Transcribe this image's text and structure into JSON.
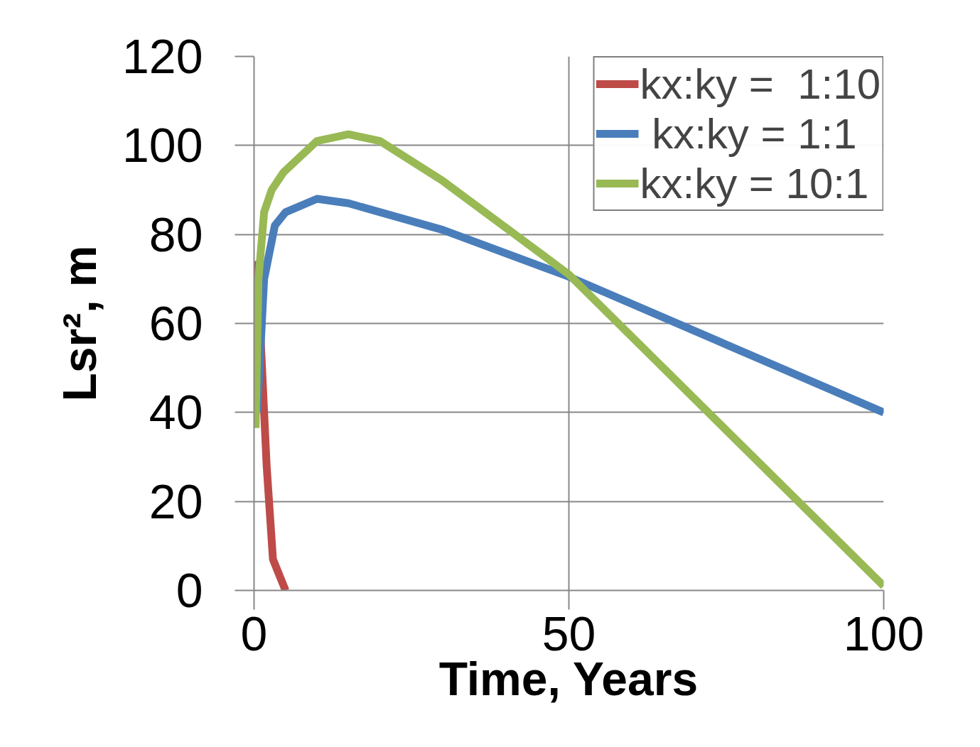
{
  "chart_data": {
    "type": "line",
    "xlabel": "Time, Years",
    "ylabel": "Lsr², m",
    "xlim": [
      0,
      100
    ],
    "ylim": [
      0,
      120
    ],
    "xticks": [
      0,
      50,
      100
    ],
    "yticks": [
      0,
      20,
      40,
      60,
      80,
      100,
      120
    ],
    "grid": true,
    "legend": "top right",
    "marker": "none",
    "line_style": "solid",
    "series": [
      {
        "name": "kx:ky =  1:10",
        "color": "#be4b48",
        "x": [
          0,
          1,
          2,
          3,
          5
        ],
        "values": [
          74,
          58,
          28,
          7,
          0
        ]
      },
      {
        "name": " kx:ky = 1:1",
        "color": "#4a7ebb",
        "x": [
          0.5,
          1.6,
          3.3,
          5,
          10,
          15,
          30,
          50,
          100
        ],
        "values": [
          40,
          70,
          82,
          85,
          88,
          87,
          81,
          70.5,
          40
        ]
      },
      {
        "name": "kx:ky = 10:1",
        "color": "#98b954",
        "x": [
          0.25,
          0.7,
          1.6,
          2.8,
          4.7,
          10,
          15,
          20,
          30,
          50,
          100
        ],
        "values": [
          36.5,
          70,
          85,
          90,
          94,
          101,
          102.5,
          101,
          92,
          71,
          1
        ]
      }
    ]
  }
}
